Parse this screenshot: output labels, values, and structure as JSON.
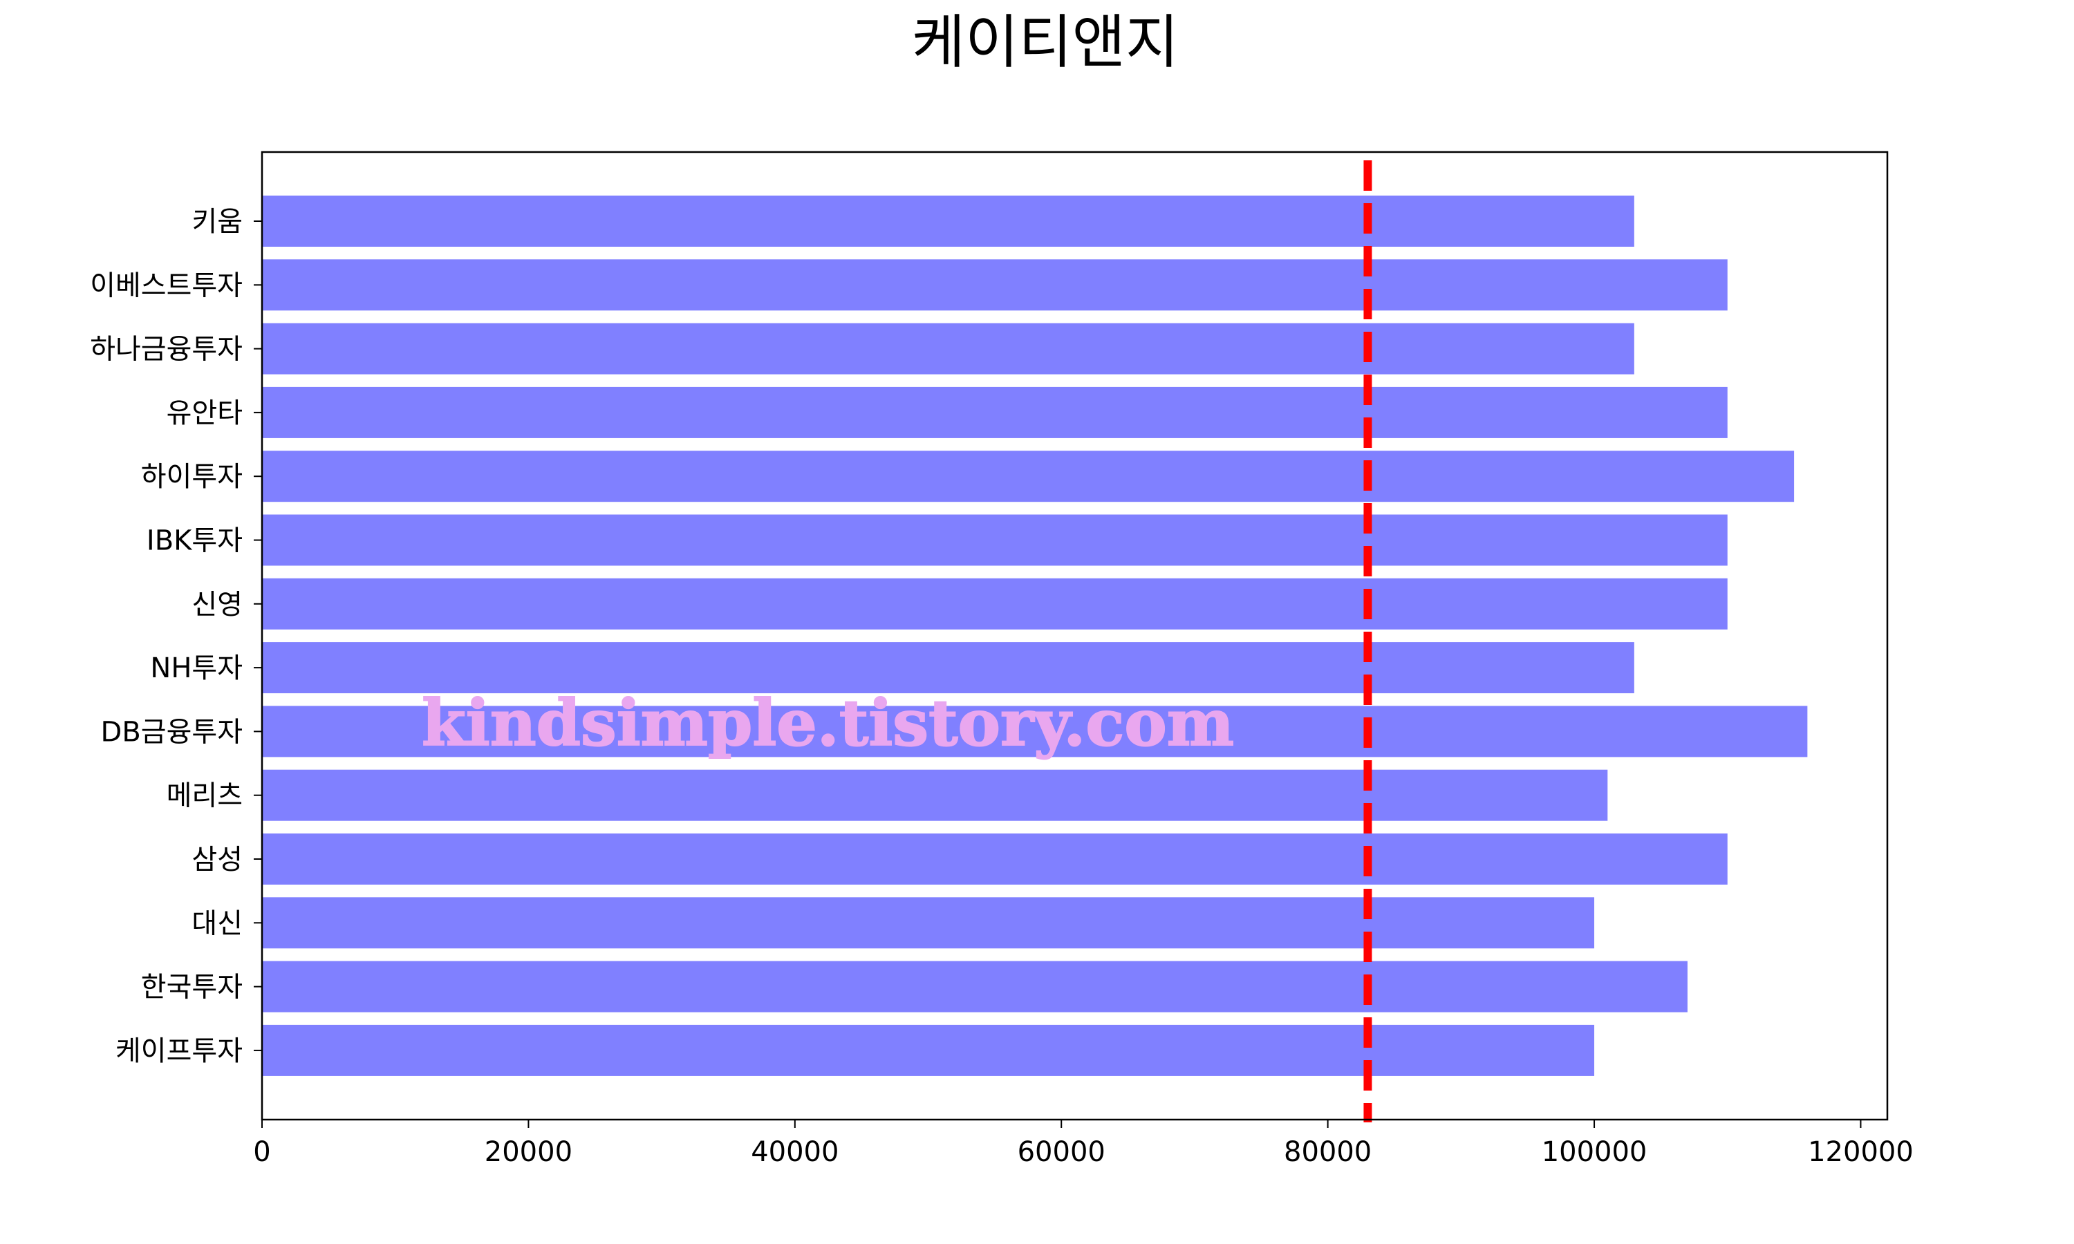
{
  "chart_data": {
    "type": "bar",
    "orientation": "horizontal",
    "title": "케이티앤지",
    "xlabel": "",
    "ylabel": "",
    "categories": [
      "키움",
      "이베스트투자",
      "하나금융투자",
      "유안타",
      "하이투자",
      "IBK투자",
      "신영",
      "NH투자",
      "DB금융투자",
      "메리츠",
      "삼성",
      "대신",
      "한국투자",
      "케이프투자"
    ],
    "values": [
      103000,
      110000,
      103000,
      110000,
      115000,
      110000,
      110000,
      103000,
      116000,
      101000,
      110000,
      100000,
      107000,
      100000
    ],
    "xlim": [
      0,
      122000
    ],
    "xticks": [
      0,
      20000,
      40000,
      60000,
      80000,
      100000,
      120000
    ],
    "reference_line": {
      "value": 83000,
      "style": "dashed",
      "color": "#ff0000"
    },
    "bar_color": "#8080ff",
    "grid": false
  },
  "watermark": "kindsimple.tistory.com"
}
